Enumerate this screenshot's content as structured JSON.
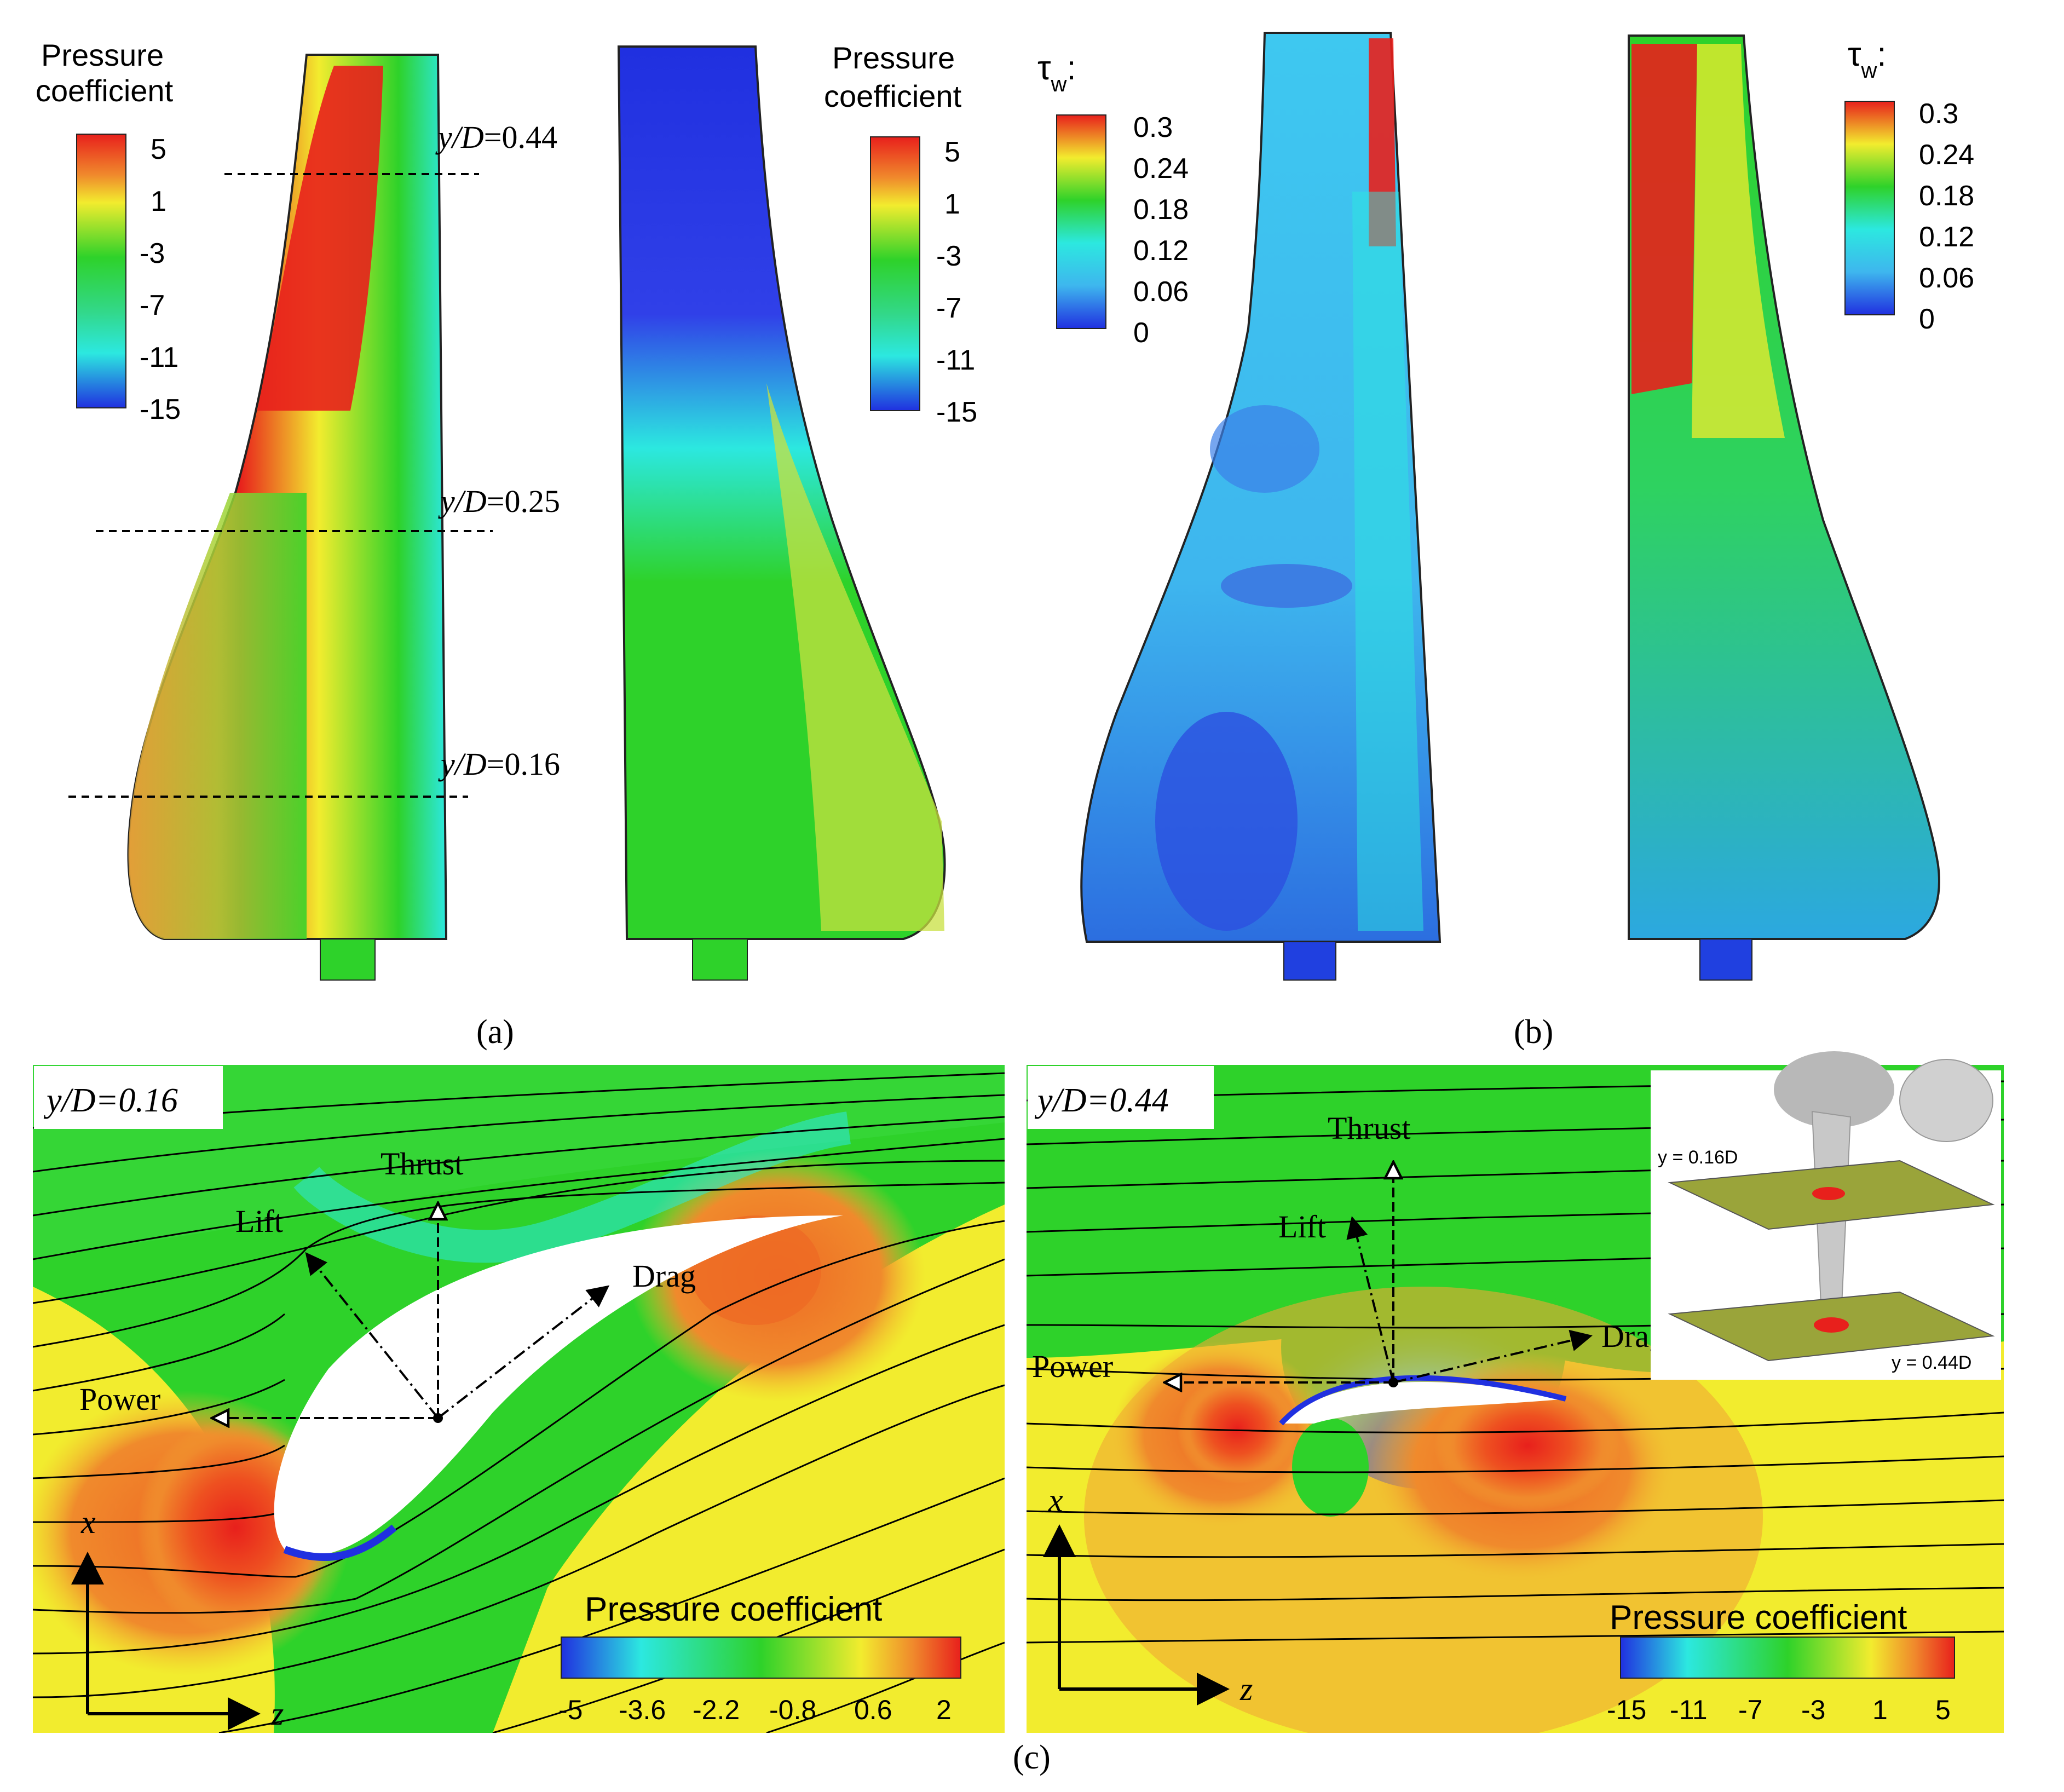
{
  "panel_a": {
    "colorbar_title_line1": "Pressure",
    "colorbar_title_line2": "coefficient",
    "colorbar_ticks": [
      "5",
      "1",
      "-3",
      "-7",
      "-11",
      "-15"
    ],
    "section_lines": [
      {
        "label_prefix": "y/D",
        "label_value": "=0.44"
      },
      {
        "label_prefix": "y/D",
        "label_value": "=0.25"
      },
      {
        "label_prefix": "y/D",
        "label_value": "=0.16"
      }
    ],
    "caption": "(a)"
  },
  "panel_b": {
    "colorbar_title_symbol": "τ",
    "colorbar_title_subscript": "w",
    "colorbar_title_colon": ":",
    "colorbar_ticks": [
      "0.3",
      "0.24",
      "0.18",
      "0.12",
      "0.06",
      "0"
    ],
    "caption": "(b)"
  },
  "panel_c_left": {
    "section_label_prefix": "y/D",
    "section_label_value": "=0.16",
    "forces": {
      "thrust": "Thrust",
      "lift": "Lift",
      "drag": "Drag",
      "power": "Power"
    },
    "axis_x": "x",
    "axis_z": "z",
    "colorbar_title": "Pressure coefficient",
    "colorbar_ticks": [
      "-5",
      "-3.6",
      "-2.2",
      "-0.8",
      "0.6",
      "2"
    ]
  },
  "panel_c_right": {
    "section_label_prefix": "y/D",
    "section_label_value": "=0.44",
    "forces": {
      "thrust": "Thrust",
      "lift": "Lift",
      "drag": "Drag",
      "power": "Power"
    },
    "axis_x": "x",
    "axis_z": "z",
    "colorbar_title": "Pressure coefficient",
    "colorbar_ticks": [
      "-15",
      "-11",
      "-7",
      "-3",
      "1",
      "5"
    ],
    "inset_label_top": "y = 0.16D",
    "inset_label_bottom": "y = 0.44D"
  },
  "caption_c": "(c)",
  "colors": {
    "red": "#e8201c",
    "orange": "#f08a2c",
    "yellow": "#f2ec2e",
    "green": "#2ed22a",
    "cyan": "#2ce8e0",
    "blue": "#2030e0",
    "light_blue": "#3eb6ee"
  }
}
